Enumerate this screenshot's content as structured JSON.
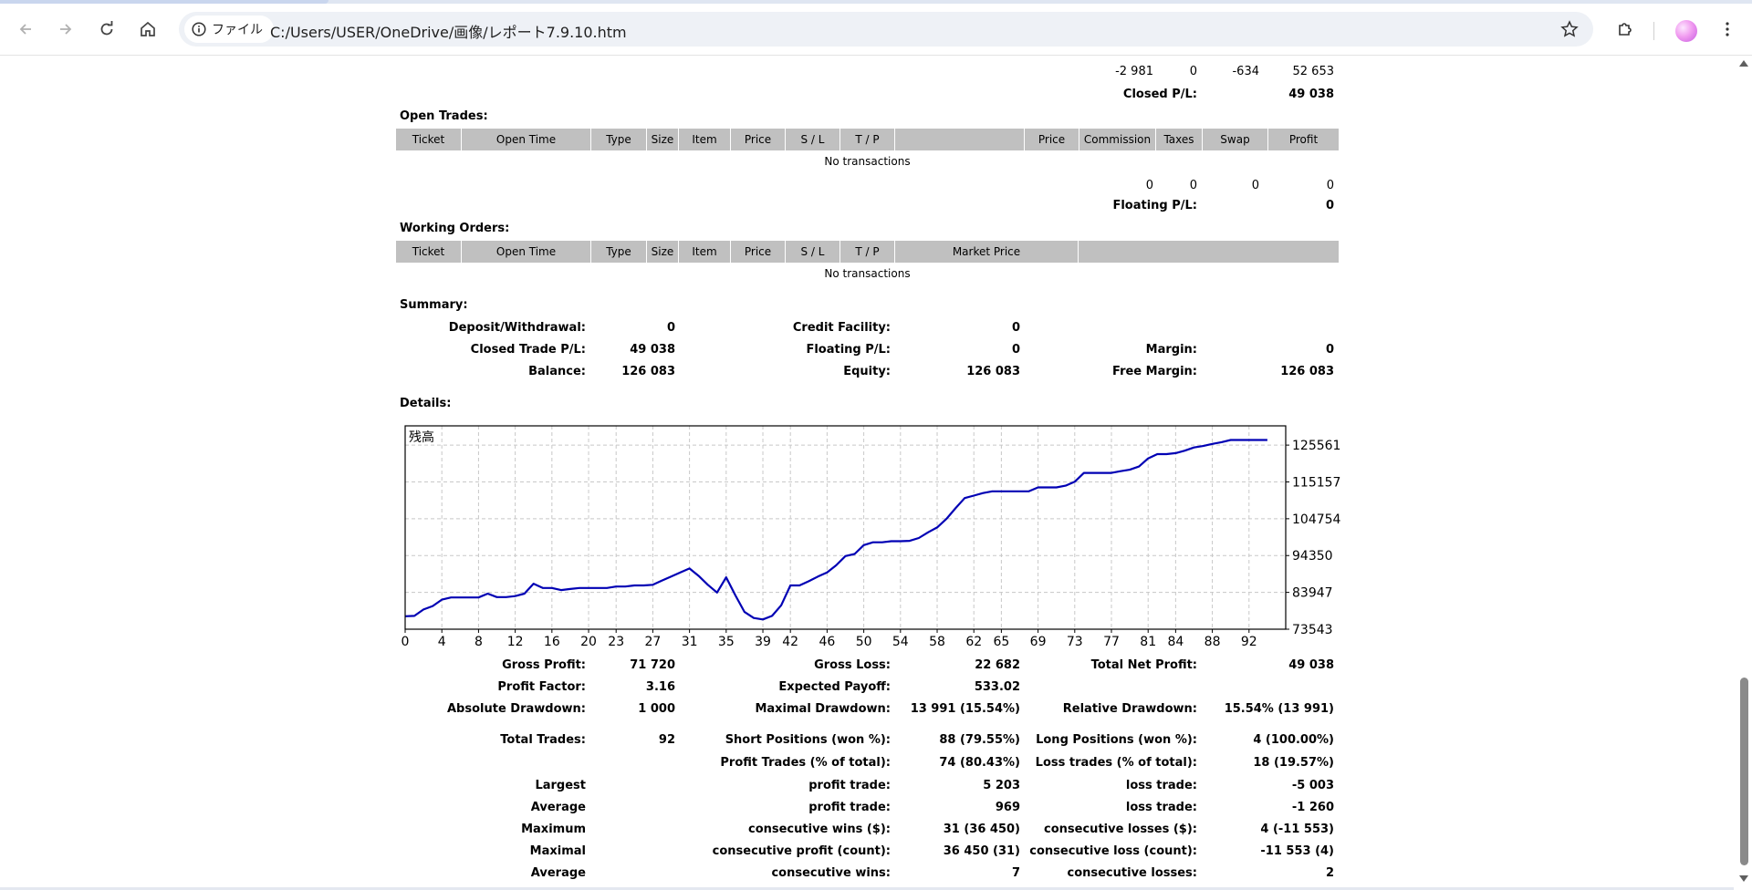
{
  "browser": {
    "site_chip_label": "ファイル",
    "url": "C:/Users/USER/OneDrive/画像/レポート7.9.10.htm"
  },
  "closed": {
    "totals": [
      "-2 981",
      "0",
      "-634",
      "52 653"
    ],
    "pl_label": "Closed P/L:",
    "pl_value": "49 038"
  },
  "open_trades": {
    "title": "Open Trades:",
    "headers": [
      "Ticket",
      "Open Time",
      "Type",
      "Size",
      "Item",
      "Price",
      "S / L",
      "T / P",
      "",
      "Price",
      "Commission",
      "Taxes",
      "Swap",
      "Profit"
    ],
    "empty_text": "No transactions",
    "totals": [
      "0",
      "0",
      "0",
      "0"
    ],
    "floating_label": "Floating P/L:",
    "floating_value": "0"
  },
  "working_orders": {
    "title": "Working Orders:",
    "headers": [
      "Ticket",
      "Open Time",
      "Type",
      "Size",
      "Item",
      "Price",
      "S / L",
      "T / P",
      "Market Price",
      ""
    ],
    "empty_text": "No transactions"
  },
  "summary": {
    "title": "Summary:",
    "deposit_label": "Deposit/Withdrawal:",
    "deposit_value": "0",
    "credit_label": "Credit Facility:",
    "credit_value": "0",
    "closed_trade_label": "Closed Trade P/L:",
    "closed_trade_value": "49 038",
    "floating_label": "Floating P/L:",
    "floating_value": "0",
    "margin_label": "Margin:",
    "margin_value": "0",
    "balance_label": "Balance:",
    "balance_value": "126 083",
    "equity_label": "Equity:",
    "equity_value": "126 083",
    "free_margin_label": "Free Margin:",
    "free_margin_value": "126 083"
  },
  "details": {
    "title": "Details:"
  },
  "chart_data": {
    "type": "line",
    "title": "残高",
    "xlabel": "",
    "ylabel": "",
    "x_ticks": [
      "0",
      "4",
      "8",
      "12",
      "16",
      "20",
      "23",
      "27",
      "31",
      "35",
      "39",
      "42",
      "46",
      "50",
      "54",
      "58",
      "62",
      "65",
      "69",
      "73",
      "77",
      "81",
      "84",
      "88",
      "92"
    ],
    "y_ticks": [
      "125561",
      "115157",
      "104754",
      "94350",
      "83947",
      "73543"
    ],
    "xlim": [
      0,
      96
    ],
    "ylim": [
      73543,
      131000
    ],
    "grid": true,
    "series": [
      {
        "color": "#0000b4",
        "x": [
          0,
          1,
          2,
          3,
          4,
          5,
          6,
          7,
          8,
          9,
          10,
          11,
          12,
          13,
          14,
          15,
          16,
          17,
          18,
          19,
          20,
          21,
          22,
          23,
          24,
          25,
          26,
          27,
          28,
          29,
          30,
          31,
          32,
          33,
          34,
          35,
          36,
          37,
          38,
          39,
          40,
          41,
          42,
          43,
          44,
          45,
          46,
          47,
          48,
          49,
          50,
          51,
          52,
          53,
          54,
          55,
          56,
          57,
          58,
          59,
          60,
          61,
          62,
          63,
          64,
          65,
          66,
          67,
          68,
          69,
          70,
          71,
          72,
          73,
          74,
          75,
          76,
          77,
          78,
          79,
          80,
          81,
          82,
          83,
          84,
          85,
          86,
          87,
          88,
          89,
          90,
          91,
          92,
          93,
          94
        ],
        "y": [
          77200,
          77300,
          79100,
          80100,
          81900,
          82500,
          82500,
          82500,
          82500,
          83600,
          82600,
          82600,
          82900,
          83600,
          86400,
          85200,
          85200,
          84600,
          84900,
          85200,
          85200,
          85200,
          85200,
          85600,
          85600,
          85900,
          85900,
          86100,
          87300,
          88400,
          89600,
          90700,
          88600,
          86100,
          83900,
          88200,
          83100,
          78400,
          76700,
          76300,
          77300,
          80300,
          85900,
          85900,
          87100,
          88400,
          89600,
          91600,
          94200,
          94800,
          97300,
          98100,
          98100,
          98400,
          98400,
          98500,
          99300,
          100900,
          102300,
          104700,
          107700,
          110600,
          111300,
          112000,
          112500,
          112500,
          112500,
          112500,
          112500,
          113600,
          113600,
          113600,
          114100,
          115200,
          117700,
          117700,
          117700,
          117700,
          118200,
          118600,
          119500,
          121800,
          123000,
          123000,
          123300,
          124000,
          124900,
          125300,
          125900,
          126400,
          127000,
          127000,
          127000,
          127000,
          127000
        ]
      }
    ]
  },
  "stats": {
    "gross_profit_label": "Gross Profit:",
    "gross_profit": "71 720",
    "gross_loss_label": "Gross Loss:",
    "gross_loss": "22 682",
    "total_net_label": "Total Net Profit:",
    "total_net": "49 038",
    "profit_factor_label": "Profit Factor:",
    "profit_factor": "3.16",
    "expected_payoff_label": "Expected Payoff:",
    "expected_payoff": "533.02",
    "abs_dd_label": "Absolute Drawdown:",
    "abs_dd": "1 000",
    "max_dd_label": "Maximal Drawdown:",
    "max_dd": "13 991 (15.54%)",
    "rel_dd_label": "Relative Drawdown:",
    "rel_dd": "15.54% (13 991)",
    "total_trades_label": "Total Trades:",
    "total_trades": "92",
    "short_label": "Short Positions (won %):",
    "short_value": "88 (79.55%)",
    "long_label": "Long Positions (won %):",
    "long_value": "4 (100.00%)",
    "profit_trades_label": "Profit Trades (% of total):",
    "profit_trades": "74 (80.43%)",
    "loss_trades_label": "Loss trades (% of total):",
    "loss_trades": "18 (19.57%)",
    "largest_label": "Largest",
    "largest_profit_label": "profit trade:",
    "largest_profit": "5 203",
    "largest_loss_label": "loss trade:",
    "largest_loss": "-5 003",
    "average_label": "Average",
    "average_profit_label": "profit trade:",
    "average_profit": "969",
    "average_loss_label": "loss trade:",
    "average_loss": "-1 260",
    "maximum_label": "Maximum",
    "max_wins_label": "consecutive wins ($):",
    "max_wins": "31 (36 450)",
    "max_losses_label": "consecutive losses ($):",
    "max_losses": "4 (-11 553)",
    "maximal_label": "Maximal",
    "maxl_profit_label": "consecutive profit (count):",
    "maxl_profit": "36 450 (31)",
    "maxl_loss_label": "consecutive loss (count):",
    "maxl_loss": "-11 553 (4)",
    "avg2_label": "Average",
    "avg_wins_label": "consecutive wins:",
    "avg_wins": "7",
    "avg_losses_label": "consecutive losses:",
    "avg_losses": "2"
  }
}
